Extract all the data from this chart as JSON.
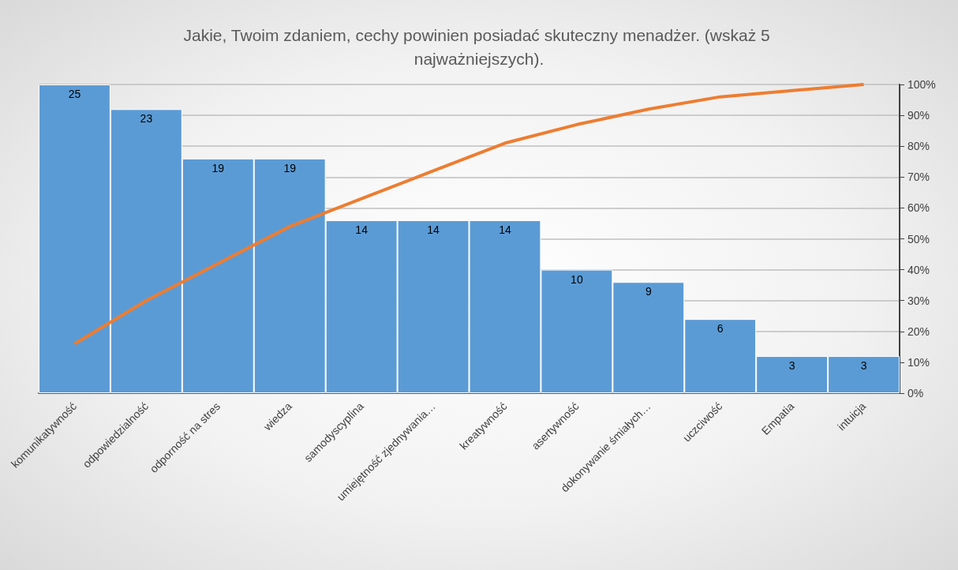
{
  "chart_data": {
    "type": "bar",
    "title": "Jakie, Twoim zdaniem, cechy powinien posiadać skuteczny menadżer. (wskaż 5 najważniejszych).",
    "categories": [
      "komunikatywność",
      "odpowiedzialność",
      "odporność na stres",
      "wiedza",
      "samodyscyplina",
      "umiejętność zjednywania…",
      "kreatywność",
      "asertywność",
      "dokonywanie śmiałych…",
      "uczciwość",
      "Empatia",
      "intuicja"
    ],
    "series": [
      {
        "color": "#5b9bd5",
        "values": [
          25,
          23,
          19,
          19,
          14,
          14,
          14,
          10,
          9,
          6,
          3,
          3
        ],
        "value_labels": [
          "25",
          "23",
          "19",
          "19",
          "14",
          "14",
          "14",
          "10",
          "9",
          "6",
          "3",
          "3"
        ]
      },
      {
        "type": "line",
        "axis": "y2",
        "color": "#ed7d31",
        "values": [
          16,
          30,
          42,
          54,
          63,
          72,
          81,
          87,
          92,
          96,
          98,
          100
        ]
      }
    ],
    "y2lim": [
      0,
      100
    ],
    "y2ticks": [
      {
        "value": 0,
        "label": "0%"
      },
      {
        "value": 10,
        "label": "10%"
      },
      {
        "value": 20,
        "label": "20%"
      },
      {
        "value": 30,
        "label": "30%"
      },
      {
        "value": 40,
        "label": "40%"
      },
      {
        "value": 50,
        "label": "50%"
      },
      {
        "value": 60,
        "label": "60%"
      },
      {
        "value": 70,
        "label": "70%"
      },
      {
        "value": 80,
        "label": "80%"
      },
      {
        "value": 90,
        "label": "90%"
      },
      {
        "value": 100,
        "label": "100%"
      }
    ],
    "grid": "y",
    "marker": "none"
  }
}
